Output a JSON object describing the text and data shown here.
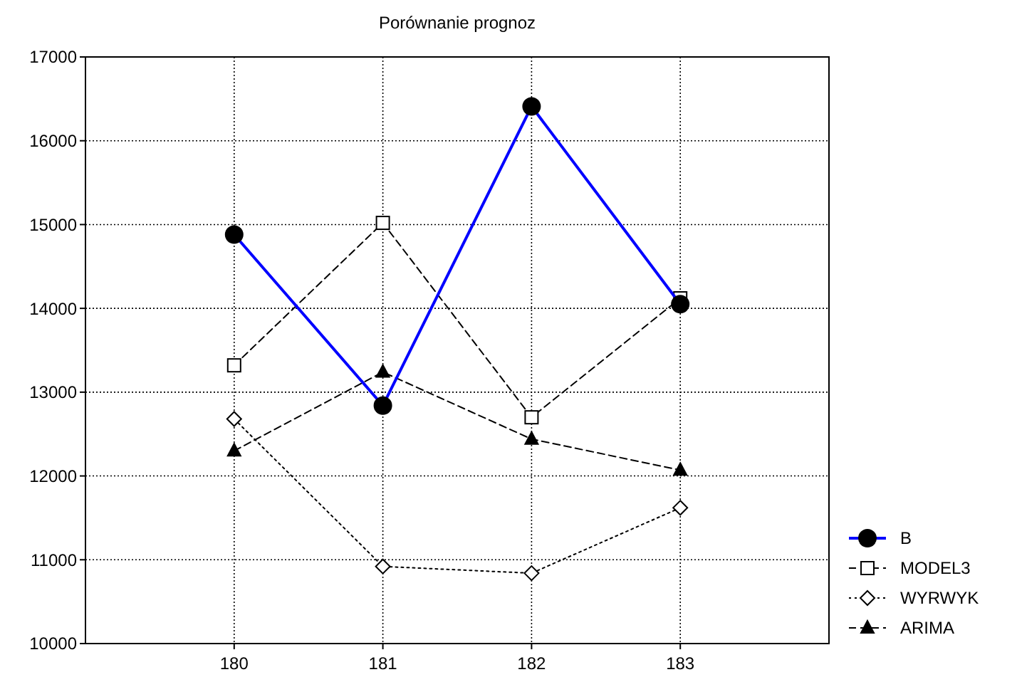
{
  "chart_data": {
    "type": "line",
    "title": "Porównanie prognoz",
    "x": [
      180,
      181,
      182,
      183
    ],
    "xlim": [
      179,
      184
    ],
    "xticks": [
      180,
      181,
      182,
      183
    ],
    "ylim": [
      10000,
      17000
    ],
    "yticks": [
      10000,
      11000,
      12000,
      13000,
      14000,
      15000,
      16000,
      17000
    ],
    "grid": true,
    "legend": "bottom right",
    "series": [
      {
        "name": "B",
        "color": "#0000ff",
        "marker": "circle",
        "line_style": "solid",
        "values": [
          14880,
          12840,
          16410,
          14050
        ]
      },
      {
        "name": "MODEL3",
        "color": "#000000",
        "marker": "square",
        "line_style": "dashed",
        "values": [
          13320,
          15020,
          12700,
          14120
        ]
      },
      {
        "name": "WYRWYK",
        "color": "#000000",
        "marker": "diamond",
        "line_style": "dotted",
        "values": [
          12680,
          10920,
          10840,
          11620
        ]
      },
      {
        "name": "ARIMA",
        "color": "#000000",
        "marker": "triangle",
        "line_style": "dashed",
        "values": [
          12300,
          13240,
          12440,
          12070
        ]
      }
    ]
  }
}
